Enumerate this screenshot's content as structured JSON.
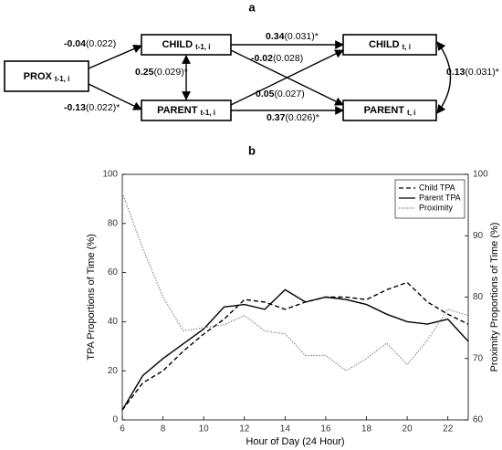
{
  "diagram": {
    "title": "a",
    "nodes": [
      {
        "label": "PROX",
        "subscript": "t-1, i"
      },
      {
        "label": "CHILD",
        "subscript": "t-1, i"
      },
      {
        "label": "PARENT",
        "subscript": "t-1, i"
      },
      {
        "label": "CHILD",
        "subscript": "t, i"
      },
      {
        "label": "PARENT",
        "subscript": "t, i"
      }
    ],
    "edges": [
      {
        "coef": "-0.04",
        "se": "(0.022)"
      },
      {
        "coef": "-0.13",
        "se": "(0.022)*"
      },
      {
        "coef": "0.25",
        "se": "(0.029)*"
      },
      {
        "coef": "0.34",
        "se": "(0.031)*"
      },
      {
        "coef": "-0.02",
        "se": "(0.028)"
      },
      {
        "coef": "0.05",
        "se": "(0.027)"
      },
      {
        "coef": "0.37",
        "se": "(0.026)*"
      },
      {
        "coef": "0.13",
        "se": "(0.031)*"
      }
    ]
  },
  "chart_data": {
    "type": "line",
    "title": "b",
    "xlabel": "Hour of Day (24 Hour)",
    "ylabel": "TPA Proportions of Time (%)",
    "y2label": "Proximity Proportions of Time (%)",
    "x": [
      6,
      7,
      8,
      9,
      10,
      11,
      12,
      13,
      14,
      15,
      16,
      17,
      18,
      19,
      20,
      21,
      22,
      23
    ],
    "xlim": [
      6,
      23
    ],
    "xticks": [
      6,
      8,
      10,
      12,
      14,
      16,
      18,
      20,
      22
    ],
    "ylim": [
      0,
      100
    ],
    "yticks": [
      0,
      20,
      40,
      60,
      80,
      100
    ],
    "y2lim": [
      60,
      100
    ],
    "y2ticks": [
      60,
      70,
      80,
      90,
      100
    ],
    "legend": "upper right",
    "series": [
      {
        "name": "Child TPA",
        "color": "#000000",
        "dash": "dashed",
        "values": [
          4,
          15,
          20,
          28,
          35,
          41,
          49,
          48,
          45,
          48,
          50,
          50,
          49,
          53,
          56,
          48,
          43,
          39
        ]
      },
      {
        "name": "Parent TPA",
        "color": "#000000",
        "dash": "solid",
        "values": [
          4,
          18,
          25,
          31,
          37,
          46,
          47,
          45,
          53,
          48,
          50,
          49,
          47,
          43,
          40,
          39,
          41,
          32
        ]
      },
      {
        "name": "Proximity",
        "color": "#808080",
        "dash": "dotted",
        "axis": "y2",
        "values": [
          97,
          88,
          80,
          74.5,
          75,
          75.5,
          77,
          74.5,
          74,
          70.5,
          70.5,
          68,
          70,
          72.5,
          69,
          73,
          78,
          77
        ]
      }
    ]
  }
}
